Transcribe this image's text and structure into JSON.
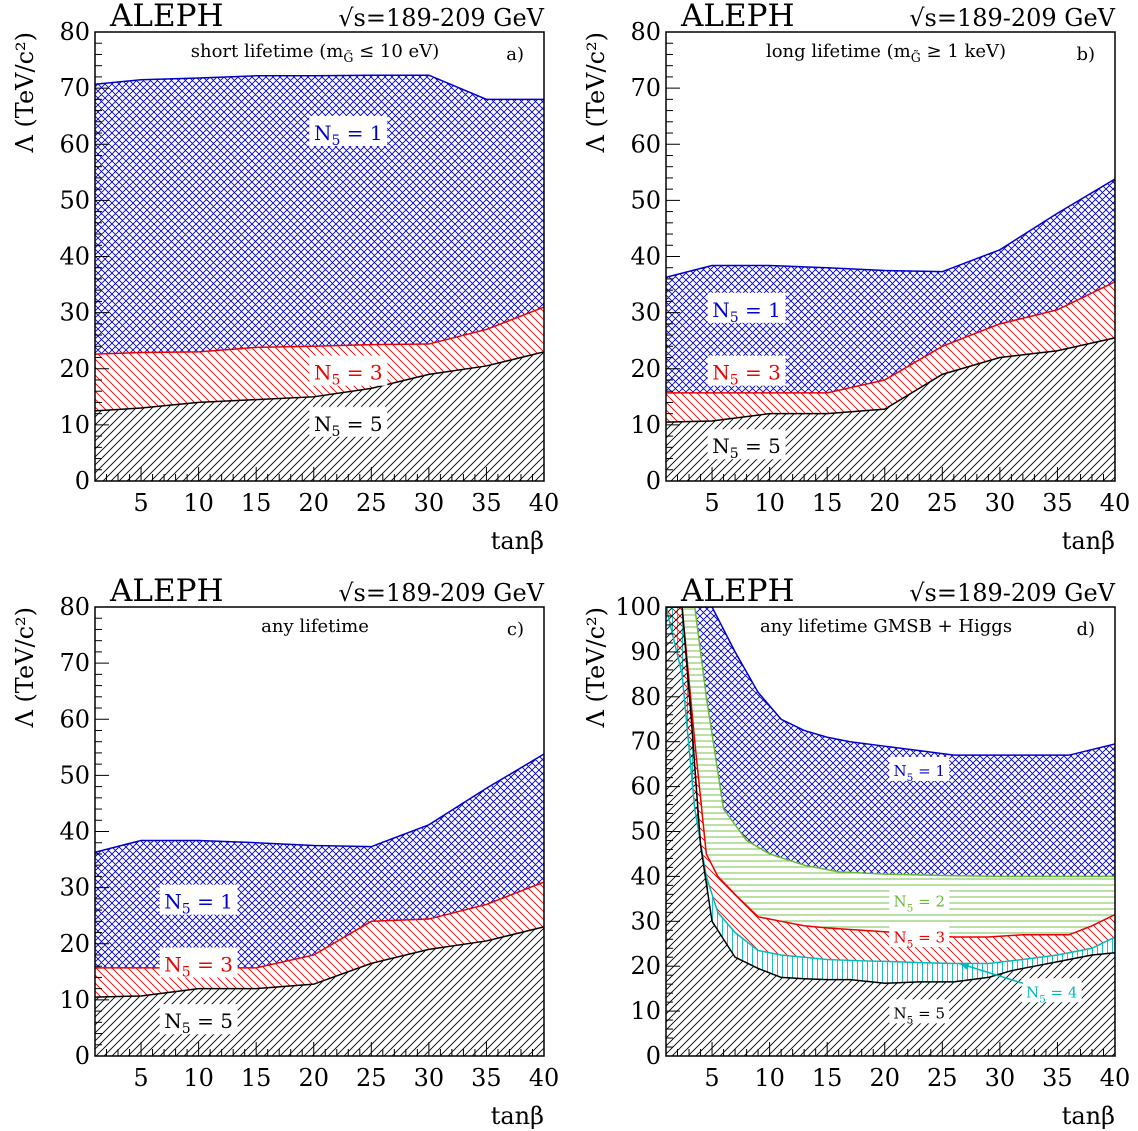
{
  "chart_data": [
    {
      "id": "a",
      "type": "area",
      "experiment": "ALEPH",
      "energy": "√s=189-209 GeV",
      "title": "short lifetime (m",
      "title_sub": "G̃",
      "title_rest": " ≤ 10 eV)",
      "panel_label": "a)",
      "xlabel": "tanβ",
      "ylabel": "Λ (TeV/c²)",
      "xlim": [
        1,
        40
      ],
      "ylim": [
        0,
        80
      ],
      "xticks": [
        5,
        10,
        15,
        20,
        25,
        30,
        35,
        40
      ],
      "yticks": [
        0,
        10,
        20,
        30,
        40,
        50,
        60,
        70,
        80
      ],
      "series": [
        {
          "name": "N5 = 1",
          "label_base": "N",
          "label_sub": "5",
          "label_rest": " = 1",
          "color": "#0000cc",
          "pattern": "cross",
          "label_pos": [
            23,
            62
          ],
          "x": [
            1,
            5,
            10,
            15,
            20,
            25,
            30,
            35,
            40
          ],
          "y": [
            70.7,
            71.5,
            71.8,
            72.2,
            72.2,
            72.3,
            72.3,
            68.0,
            68.0
          ]
        },
        {
          "name": "N5 = 3",
          "label_base": "N",
          "label_sub": "5",
          "label_rest": " = 3",
          "color": "#ee0000",
          "pattern": "hatch",
          "label_pos": [
            23,
            19.3
          ],
          "x": [
            1,
            5,
            10,
            15,
            20,
            25,
            30,
            35,
            40
          ],
          "y": [
            22.6,
            22.9,
            23.0,
            23.8,
            24.0,
            24.3,
            24.4,
            27.0,
            31.0
          ]
        },
        {
          "name": "N5 = 5",
          "label_base": "N",
          "label_sub": "5",
          "label_rest": " = 5",
          "color": "#000000",
          "pattern": "hatch",
          "label_pos": [
            23,
            10.2
          ],
          "x": [
            1,
            5,
            10,
            15,
            20,
            25,
            30,
            35,
            40
          ],
          "y": [
            12.5,
            13.0,
            14.0,
            14.5,
            15.0,
            16.5,
            19.0,
            20.5,
            23.0
          ]
        }
      ]
    },
    {
      "id": "b",
      "type": "area",
      "experiment": "ALEPH",
      "energy": "√s=189-209 GeV",
      "title": "long lifetime (m",
      "title_sub": "G̃",
      "title_rest": " ≥ 1 keV)",
      "panel_label": "b)",
      "xlabel": "tanβ",
      "ylabel": "Λ (TeV/c²)",
      "xlim": [
        1,
        40
      ],
      "ylim": [
        0,
        80
      ],
      "xticks": [
        5,
        10,
        15,
        20,
        25,
        30,
        35,
        40
      ],
      "yticks": [
        0,
        10,
        20,
        30,
        40,
        50,
        60,
        70,
        80
      ],
      "series": [
        {
          "name": "N5 = 1",
          "label_base": "N",
          "label_sub": "5",
          "label_rest": " = 1",
          "color": "#0000cc",
          "pattern": "cross",
          "label_pos": [
            8,
            30.5
          ],
          "x": [
            1,
            5,
            10,
            15,
            20,
            25,
            30,
            35,
            40
          ],
          "y": [
            36.3,
            38.4,
            38.4,
            38.0,
            37.5,
            37.3,
            41.2,
            47.7,
            53.8
          ]
        },
        {
          "name": "N5 = 3",
          "label_base": "N",
          "label_sub": "5",
          "label_rest": " = 3",
          "color": "#ee0000",
          "pattern": "hatch",
          "label_pos": [
            8,
            19.3
          ],
          "x": [
            1,
            5,
            10,
            15,
            20,
            25,
            30,
            35,
            40
          ],
          "y": [
            15.7,
            15.7,
            15.7,
            15.7,
            18.0,
            24.0,
            28.0,
            30.5,
            35.5
          ]
        },
        {
          "name": "N5 = 5",
          "label_base": "N",
          "label_sub": "5",
          "label_rest": " = 5",
          "color": "#000000",
          "pattern": "hatch",
          "label_pos": [
            8,
            6.2
          ],
          "x": [
            1,
            5,
            10,
            15,
            20,
            25,
            30,
            35,
            40
          ],
          "y": [
            10.5,
            10.7,
            12.0,
            12.0,
            12.8,
            19.0,
            22.0,
            23.2,
            25.5
          ]
        }
      ]
    },
    {
      "id": "c",
      "type": "area",
      "experiment": "ALEPH",
      "energy": "√s=189-209 GeV",
      "title": "any lifetime",
      "title_sub": "",
      "title_rest": "",
      "panel_label": "c)",
      "xlabel": "tanβ",
      "ylabel": "Λ (TeV/c²)",
      "xlim": [
        1,
        40
      ],
      "ylim": [
        0,
        80
      ],
      "xticks": [
        5,
        10,
        15,
        20,
        25,
        30,
        35,
        40
      ],
      "yticks": [
        0,
        10,
        20,
        30,
        40,
        50,
        60,
        70,
        80
      ],
      "series": [
        {
          "name": "N5 = 1",
          "label_base": "N",
          "label_sub": "5",
          "label_rest": " = 1",
          "color": "#0000cc",
          "pattern": "cross",
          "label_pos": [
            10,
            27.5
          ],
          "x": [
            1,
            5,
            10,
            15,
            20,
            25,
            30,
            35,
            40
          ],
          "y": [
            36.3,
            38.4,
            38.4,
            38.0,
            37.5,
            37.3,
            41.2,
            47.7,
            53.8
          ]
        },
        {
          "name": "N5 = 3",
          "label_base": "N",
          "label_sub": "5",
          "label_rest": " = 3",
          "color": "#ee0000",
          "pattern": "hatch",
          "label_pos": [
            10,
            16.3
          ],
          "x": [
            1,
            5,
            10,
            15,
            20,
            25,
            30,
            35,
            40
          ],
          "y": [
            15.7,
            15.7,
            15.7,
            15.7,
            18.0,
            24.0,
            24.4,
            27.0,
            31.0
          ]
        },
        {
          "name": "N5 = 5",
          "label_base": "N",
          "label_sub": "5",
          "label_rest": " = 5",
          "color": "#000000",
          "pattern": "hatch",
          "label_pos": [
            10,
            6.2
          ],
          "x": [
            1,
            5,
            10,
            15,
            20,
            25,
            30,
            35,
            40
          ],
          "y": [
            10.5,
            10.7,
            12.0,
            12.0,
            12.8,
            16.5,
            19.0,
            20.5,
            23.0
          ]
        }
      ]
    },
    {
      "id": "d",
      "type": "area",
      "experiment": "ALEPH",
      "energy": "√s=189-209 GeV",
      "title": "any lifetime GMSB + Higgs",
      "title_sub": "",
      "title_rest": "",
      "panel_label": "d)",
      "xlabel": "tanβ",
      "ylabel": "Λ (TeV/c²)",
      "xlim": [
        1,
        40
      ],
      "ylim": [
        0,
        100
      ],
      "xticks": [
        5,
        10,
        15,
        20,
        25,
        30,
        35,
        40
      ],
      "yticks": [
        0,
        10,
        20,
        30,
        40,
        50,
        60,
        70,
        80,
        90,
        100
      ],
      "arrow_from": [
        32,
        16.2
      ],
      "arrow_to": [
        26.5,
        20.6
      ],
      "series": [
        {
          "name": "N5 = 1",
          "label_base": "N",
          "label_sub": "5",
          "label_rest": " = 1",
          "color": "#0000cc",
          "pattern": "cross",
          "label_pos": [
            23,
            63.5
          ],
          "x": [
            1,
            2.4,
            3.5,
            5,
            7,
            9,
            11,
            13,
            15,
            17,
            20,
            23,
            26,
            29,
            32,
            36,
            40
          ],
          "y": [
            100,
            100,
            100,
            100,
            90,
            81,
            75,
            72.5,
            71,
            70,
            69,
            68,
            67,
            67,
            67,
            67,
            69.5
          ]
        },
        {
          "name": "N5 = 2",
          "label_base": "N",
          "label_sub": "5",
          "label_rest": " = 2",
          "color": "#66bb33",
          "pattern": "hline",
          "label_pos": [
            23,
            34.5
          ],
          "x": [
            1,
            2.4,
            3.5,
            4.5,
            6,
            8,
            10,
            13,
            16,
            20,
            25,
            30,
            35,
            40
          ],
          "y": [
            100,
            100,
            100,
            80,
            55,
            48,
            45,
            42.5,
            41,
            40.5,
            40.2,
            40,
            40,
            40
          ]
        },
        {
          "name": "N5 = 3",
          "label_base": "N",
          "label_sub": "5",
          "label_rest": " = 3",
          "color": "#ee0000",
          "pattern": "hatch",
          "label_pos": [
            23,
            26.5
          ],
          "x": [
            1,
            2.4,
            3.5,
            4.5,
            5.5,
            7,
            9,
            11,
            13,
            15,
            18,
            21,
            23,
            26,
            29,
            32,
            35,
            36,
            38,
            40
          ],
          "y": [
            100,
            100,
            70,
            45,
            40,
            36,
            31,
            30,
            29,
            28.5,
            28,
            27.5,
            27,
            26.5,
            26.5,
            27,
            27,
            27,
            29,
            31.5
          ]
        },
        {
          "name": "N5 = 4",
          "label_base": "N",
          "label_sub": "5",
          "label_rest": " = 4",
          "color": "#00bbbb",
          "pattern": "vline",
          "label_pos": [
            34.5,
            14.2
          ],
          "x": [
            1,
            2.4,
            3.5,
            4.5,
            5.5,
            7,
            9,
            11,
            13,
            15,
            18,
            21,
            23,
            26,
            29,
            32,
            35,
            38,
            40
          ],
          "y": [
            100,
            85,
            55,
            40,
            32,
            27.5,
            23.5,
            22.5,
            22,
            21.5,
            21.2,
            21,
            20.8,
            20.6,
            20.6,
            21.5,
            22.5,
            24,
            26.5
          ]
        },
        {
          "name": "N5 = 5",
          "label_base": "N",
          "label_sub": "5",
          "label_rest": " = 5",
          "color": "#000000",
          "pattern": "hatch",
          "label_pos": [
            23,
            9.5
          ],
          "x": [
            1,
            2.4,
            3.2,
            4,
            5,
            7,
            9,
            11,
            13,
            15,
            17,
            20,
            23,
            26,
            29,
            31,
            33,
            35,
            38,
            40
          ],
          "y": [
            100,
            100,
            75,
            47,
            30,
            22,
            19.5,
            17.5,
            17.2,
            17,
            17,
            16.2,
            16.5,
            16.5,
            17.5,
            19,
            20,
            21,
            22.5,
            23
          ]
        }
      ]
    }
  ]
}
